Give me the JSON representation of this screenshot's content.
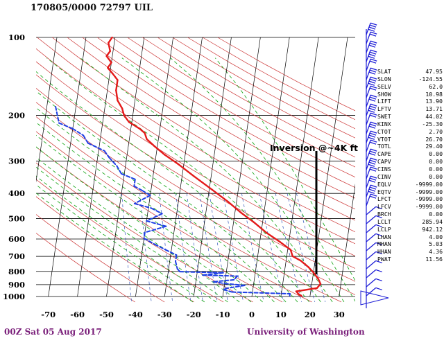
{
  "header": {
    "title": "170805/0000 72797  UIL"
  },
  "footer": {
    "left": "00Z Sat 05 Aug 2017",
    "right": "University of Washington"
  },
  "annotation": {
    "text": "Inversion @~4K ft",
    "marker_temperature_c": 22
  },
  "chart_data": {
    "type": "line",
    "title": "170805/0000 72797  UIL",
    "subtitle": "",
    "xlabel": "",
    "ylabel": "",
    "x_ticks": [
      -70,
      -60,
      -50,
      -40,
      -30,
      -20,
      -10,
      0,
      10,
      20,
      30
    ],
    "y_ticks": [
      100,
      200,
      300,
      400,
      500,
      600,
      700,
      800,
      900,
      1000
    ],
    "xlim": [
      -75,
      35
    ],
    "ylim": [
      1050,
      100
    ],
    "y_scale": "log",
    "grid": true,
    "series": [
      {
        "name": "",
        "color": "#e41a1a",
        "style": "solid",
        "points": [
          [
            -61,
            100
          ],
          [
            -62,
            105
          ],
          [
            -61,
            113
          ],
          [
            -62,
            118
          ],
          [
            -60,
            125
          ],
          [
            -61,
            131
          ],
          [
            -59,
            138
          ],
          [
            -57,
            146
          ],
          [
            -57,
            160
          ],
          [
            -56,
            175
          ],
          [
            -54,
            188
          ],
          [
            -53,
            200
          ],
          [
            -51,
            212
          ],
          [
            -47,
            225
          ],
          [
            -45,
            234
          ],
          [
            -44,
            247
          ],
          [
            -41,
            263
          ],
          [
            -37,
            284
          ],
          [
            -32,
            308
          ],
          [
            -26,
            343
          ],
          [
            -19,
            387
          ],
          [
            -13,
            430
          ],
          [
            -8,
            474
          ],
          [
            -3,
            517
          ],
          [
            2,
            569
          ],
          [
            7,
            616
          ],
          [
            11,
            660
          ],
          [
            12,
            699
          ],
          [
            15,
            727
          ],
          [
            18,
            770
          ],
          [
            20,
            808
          ],
          [
            22,
            856
          ],
          [
            23,
            894
          ],
          [
            22,
            928
          ],
          [
            15,
            955
          ],
          [
            16,
            980
          ],
          [
            17,
            993
          ]
        ]
      },
      {
        "name": "",
        "color": "#1f3fe6",
        "style": "dashed",
        "points": [
          [
            -77,
            185
          ],
          [
            -75,
            214
          ],
          [
            -70,
            225
          ],
          [
            -66,
            239
          ],
          [
            -64,
            256
          ],
          [
            -58,
            274
          ],
          [
            -56,
            291
          ],
          [
            -53,
            313
          ],
          [
            -51,
            336
          ],
          [
            -46,
            353
          ],
          [
            -46,
            375
          ],
          [
            -43,
            390
          ],
          [
            -40,
            407
          ],
          [
            -45,
            438
          ],
          [
            -39,
            456
          ],
          [
            -35,
            479
          ],
          [
            -40,
            511
          ],
          [
            -33,
            536
          ],
          [
            -40,
            566
          ],
          [
            -40,
            596
          ],
          [
            -36,
            629
          ],
          [
            -32,
            660
          ],
          [
            -28,
            692
          ],
          [
            -28,
            732
          ],
          [
            -27,
            782
          ],
          [
            -26,
            802
          ],
          [
            -11,
            810
          ],
          [
            -18,
            827
          ],
          [
            -6,
            834
          ],
          [
            -7,
            862
          ],
          [
            -14,
            877
          ],
          [
            -10,
            891
          ],
          [
            -3,
            906
          ],
          [
            -9,
            929
          ],
          [
            -10,
            941
          ],
          [
            -7,
            961
          ],
          [
            13,
            976
          ],
          [
            13,
            994
          ]
        ]
      }
    ]
  },
  "stability_indices": [
    {
      "label": "SLAT",
      "value": "47.95"
    },
    {
      "label": "SLON",
      "value": "-124.55"
    },
    {
      "label": "SELV",
      "value": "62.0"
    },
    {
      "label": "SHOW",
      "value": "10.98"
    },
    {
      "label": "LIFT",
      "value": "13.90"
    },
    {
      "label": "LFTV",
      "value": "13.71"
    },
    {
      "label": "SWET",
      "value": "44.02"
    },
    {
      "label": "KINX",
      "value": "-25.30"
    },
    {
      "label": "CTOT",
      "value": "2.70"
    },
    {
      "label": "VTOT",
      "value": "26.70"
    },
    {
      "label": "TOTL",
      "value": "29.40"
    },
    {
      "label": "CAPE",
      "value": "0.00"
    },
    {
      "label": "CAPV",
      "value": "0.00"
    },
    {
      "label": "CINS",
      "value": "0.00"
    },
    {
      "label": "CINV",
      "value": "0.00"
    },
    {
      "label": "EQLV",
      "value": "-9999.00"
    },
    {
      "label": "EQTV",
      "value": "-9999.00"
    },
    {
      "label": "LFCT",
      "value": "-9999.00"
    },
    {
      "label": "LFCV",
      "value": "-9999.00"
    },
    {
      "label": "BRCH",
      "value": "0.00"
    },
    {
      "label": "LCLT",
      "value": "285.94"
    },
    {
      "label": "LCLP",
      "value": "942.12"
    },
    {
      "label": "LHAN",
      "value": "4.00"
    },
    {
      "label": "MHAN",
      "value": "5.03"
    },
    {
      "label": "HHAN",
      "value": "4.36"
    },
    {
      "label": "PWAT",
      "value": "11.56"
    }
  ],
  "colors": {
    "isotherm": "#000000",
    "dry_adiabat": "#cc3333",
    "moist_adiabat": "#22aa22",
    "mixing_ratio": "#3355bb",
    "wind_barb": "#1a1ad6"
  }
}
